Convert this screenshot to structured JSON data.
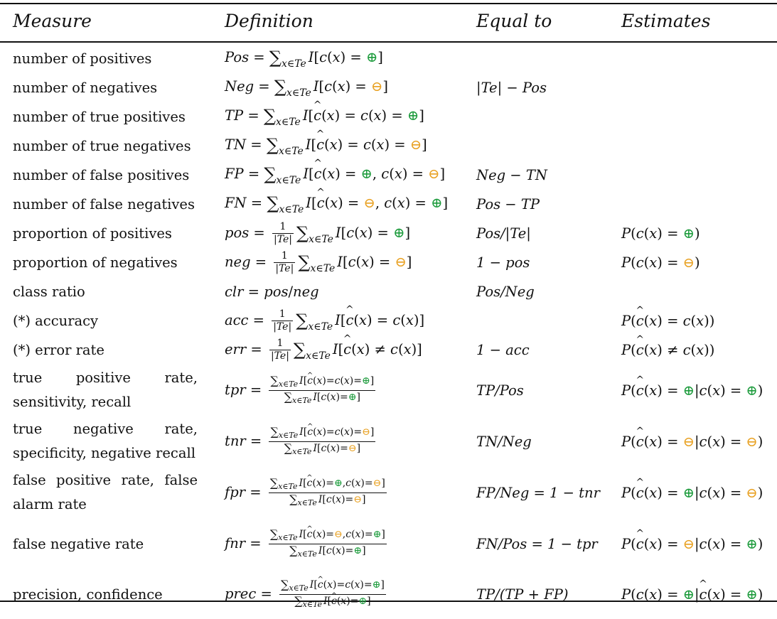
{
  "table": {
    "headers": [
      "Measure",
      "Definition",
      "Equal to",
      "Estimates"
    ],
    "rows": [
      {
        "measure": "number of positives",
        "equal": "",
        "estimate": ""
      },
      {
        "measure": "number of negatives",
        "equal": "|Te| − Pos",
        "estimate": ""
      },
      {
        "measure": "number of true positives",
        "equal": "",
        "estimate": ""
      },
      {
        "measure": "number of true negatives",
        "equal": "",
        "estimate": ""
      },
      {
        "measure": "number of false positives",
        "equal": "Neg − TN",
        "estimate": ""
      },
      {
        "measure": "number of false negatives",
        "equal": "Pos − TP",
        "estimate": ""
      },
      {
        "measure": "proportion of positives",
        "equal": "Pos/|Te|",
        "estimate": ""
      },
      {
        "measure": "proportion of negatives",
        "equal": "1 − pos",
        "estimate": ""
      },
      {
        "measure": "class ratio",
        "equal": "Pos/Neg",
        "estimate": ""
      },
      {
        "measure": "(*) accuracy",
        "equal": "",
        "estimate": ""
      },
      {
        "measure": "(*) error rate",
        "equal": "1 − acc",
        "estimate": ""
      },
      {
        "measure": "true positive rate, sensitivity, recall",
        "equal": "TP/Pos",
        "estimate": ""
      },
      {
        "measure": "true negative rate, specificity, negative recall",
        "equal": "TN/Neg",
        "estimate": ""
      },
      {
        "measure": "false positive rate, false alarm rate",
        "equal": "FP/Neg = 1 − tnr",
        "estimate": ""
      },
      {
        "measure": "false negative rate",
        "equal": "FN/Pos = 1 − tpr",
        "estimate": ""
      },
      {
        "measure": "precision, confidence",
        "equal": "TP/(TP + FP)",
        "estimate": ""
      }
    ]
  },
  "symbols": {
    "positive": "⊕",
    "negative": "⊖",
    "positive_color": "#1a9a3a",
    "negative_color": "#e8a020"
  }
}
